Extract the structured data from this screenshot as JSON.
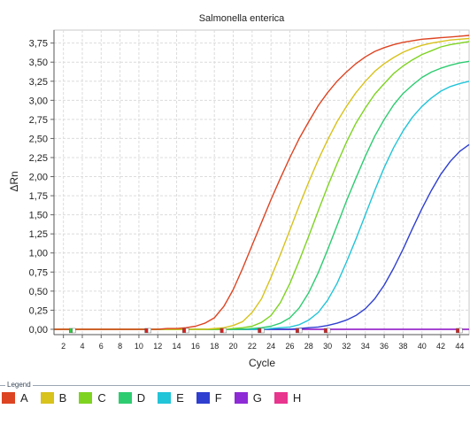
{
  "chart_data": {
    "type": "line",
    "title": "Salmonella enterica",
    "xlabel": "Cycle",
    "ylabel": "ΔRn",
    "xlim": [
      1,
      45
    ],
    "ylim": [
      -0.07,
      3.92
    ],
    "x_ticks": [
      2,
      4,
      6,
      8,
      10,
      12,
      14,
      16,
      18,
      20,
      22,
      24,
      26,
      28,
      30,
      32,
      34,
      36,
      38,
      40,
      42,
      44
    ],
    "y_ticks": [
      0,
      0.25,
      0.5,
      0.75,
      1.0,
      1.25,
      1.5,
      1.75,
      2.0,
      2.25,
      2.5,
      2.75,
      3.0,
      3.25,
      3.5,
      3.75
    ],
    "y_tick_labels": [
      "0,00",
      "0,25",
      "0,50",
      "0,75",
      "1,00",
      "1,25",
      "1,50",
      "1,75",
      "2,00",
      "2,25",
      "2,50",
      "2,75",
      "3,00",
      "3,25",
      "3,50",
      "3,75"
    ],
    "grid": true,
    "x": [
      1,
      2,
      3,
      4,
      5,
      6,
      7,
      8,
      9,
      10,
      11,
      12,
      13,
      14,
      15,
      16,
      17,
      18,
      19,
      20,
      21,
      22,
      23,
      24,
      25,
      26,
      27,
      28,
      29,
      30,
      31,
      32,
      33,
      34,
      35,
      36,
      37,
      38,
      39,
      40,
      41,
      42,
      43,
      44,
      45
    ],
    "series": [
      {
        "name": "A",
        "color": "#dd4422",
        "values": [
          0,
          0,
          0,
          0,
          0,
          0,
          0,
          0,
          0,
          0,
          0,
          0,
          0.01,
          0.01,
          0.02,
          0.04,
          0.08,
          0.15,
          0.3,
          0.52,
          0.8,
          1.1,
          1.4,
          1.7,
          1.98,
          2.25,
          2.5,
          2.72,
          2.93,
          3.1,
          3.25,
          3.37,
          3.48,
          3.57,
          3.64,
          3.69,
          3.73,
          3.76,
          3.78,
          3.8,
          3.81,
          3.82,
          3.83,
          3.84,
          3.85
        ]
      },
      {
        "name": "B",
        "color": "#d8c21c",
        "values": [
          0,
          0,
          0,
          0,
          0,
          0,
          0,
          0,
          0,
          0,
          0,
          0,
          0,
          0,
          0,
          0,
          0,
          0.01,
          0.02,
          0.05,
          0.1,
          0.22,
          0.4,
          0.68,
          0.98,
          1.3,
          1.62,
          1.93,
          2.22,
          2.48,
          2.72,
          2.92,
          3.1,
          3.25,
          3.38,
          3.48,
          3.56,
          3.63,
          3.68,
          3.72,
          3.75,
          3.77,
          3.79,
          3.8,
          3.81
        ]
      },
      {
        "name": "C",
        "color": "#7ed321",
        "values": [
          0,
          0,
          0,
          0,
          0,
          0,
          0,
          0,
          0,
          0,
          0,
          0,
          0,
          0,
          0,
          0,
          0,
          0,
          0,
          0.01,
          0.02,
          0.04,
          0.09,
          0.18,
          0.35,
          0.6,
          0.9,
          1.22,
          1.55,
          1.87,
          2.17,
          2.45,
          2.7,
          2.9,
          3.08,
          3.22,
          3.35,
          3.45,
          3.53,
          3.6,
          3.65,
          3.7,
          3.73,
          3.75,
          3.77
        ]
      },
      {
        "name": "D",
        "color": "#2ecc71",
        "values": [
          0,
          0,
          0,
          0,
          0,
          0,
          0,
          0,
          0,
          0,
          0,
          0,
          0,
          0,
          0,
          0,
          0,
          0,
          0,
          0,
          0,
          0.01,
          0.02,
          0.04,
          0.08,
          0.15,
          0.28,
          0.48,
          0.74,
          1.04,
          1.36,
          1.68,
          1.98,
          2.27,
          2.53,
          2.75,
          2.94,
          3.09,
          3.2,
          3.3,
          3.37,
          3.42,
          3.46,
          3.49,
          3.51
        ]
      },
      {
        "name": "E",
        "color": "#22c4d8",
        "values": [
          0,
          0,
          0,
          0,
          0,
          0,
          0,
          0,
          0,
          0,
          0,
          0,
          0,
          0,
          0,
          0,
          0,
          0,
          0,
          0,
          0,
          0,
          0,
          0.01,
          0.02,
          0.03,
          0.06,
          0.12,
          0.22,
          0.38,
          0.6,
          0.88,
          1.18,
          1.5,
          1.82,
          2.12,
          2.38,
          2.6,
          2.78,
          2.92,
          3.03,
          3.12,
          3.18,
          3.22,
          3.25
        ]
      },
      {
        "name": "F",
        "color": "#2f3fd0",
        "values": [
          0,
          0,
          0,
          0,
          0,
          0,
          0,
          0,
          0,
          0,
          0,
          0,
          0,
          0,
          0,
          0,
          0,
          0,
          0,
          0,
          0,
          0,
          0,
          0,
          0,
          0,
          0.01,
          0.02,
          0.03,
          0.05,
          0.08,
          0.12,
          0.18,
          0.27,
          0.4,
          0.58,
          0.8,
          1.05,
          1.32,
          1.58,
          1.82,
          2.03,
          2.2,
          2.33,
          2.42
        ]
      },
      {
        "name": "G",
        "color": "#8e2bd6",
        "values": [
          0,
          0,
          0,
          0,
          0,
          0,
          0,
          0,
          0,
          0,
          0,
          0,
          0,
          0,
          0,
          0,
          0,
          0,
          0,
          0,
          0,
          0,
          0,
          0,
          0,
          0,
          0,
          0,
          0,
          0,
          0,
          0,
          0,
          0,
          0,
          0,
          0,
          0,
          0,
          0,
          0,
          0,
          0,
          0,
          0
        ]
      },
      {
        "name": "H",
        "color": "#e8358e",
        "values": [
          0,
          0,
          0,
          0,
          0,
          0,
          0,
          0,
          0,
          0,
          0,
          0,
          0,
          0,
          0,
          0,
          0,
          0,
          0,
          0,
          0,
          0,
          0,
          0,
          0,
          0,
          0,
          0,
          0,
          0,
          0,
          0,
          0,
          0,
          0,
          0,
          0,
          0,
          0,
          0,
          0,
          0,
          0,
          0,
          0
        ]
      }
    ]
  },
  "legend": {
    "title": "Legend",
    "items": [
      {
        "label": "A",
        "color": "#dd4422"
      },
      {
        "label": "B",
        "color": "#d8c21c"
      },
      {
        "label": "C",
        "color": "#7ed321"
      },
      {
        "label": "D",
        "color": "#2ecc71"
      },
      {
        "label": "E",
        "color": "#22c4d8"
      },
      {
        "label": "F",
        "color": "#2f3fd0"
      },
      {
        "label": "G",
        "color": "#8e2bd6"
      },
      {
        "label": "H",
        "color": "#e8358e"
      }
    ]
  }
}
